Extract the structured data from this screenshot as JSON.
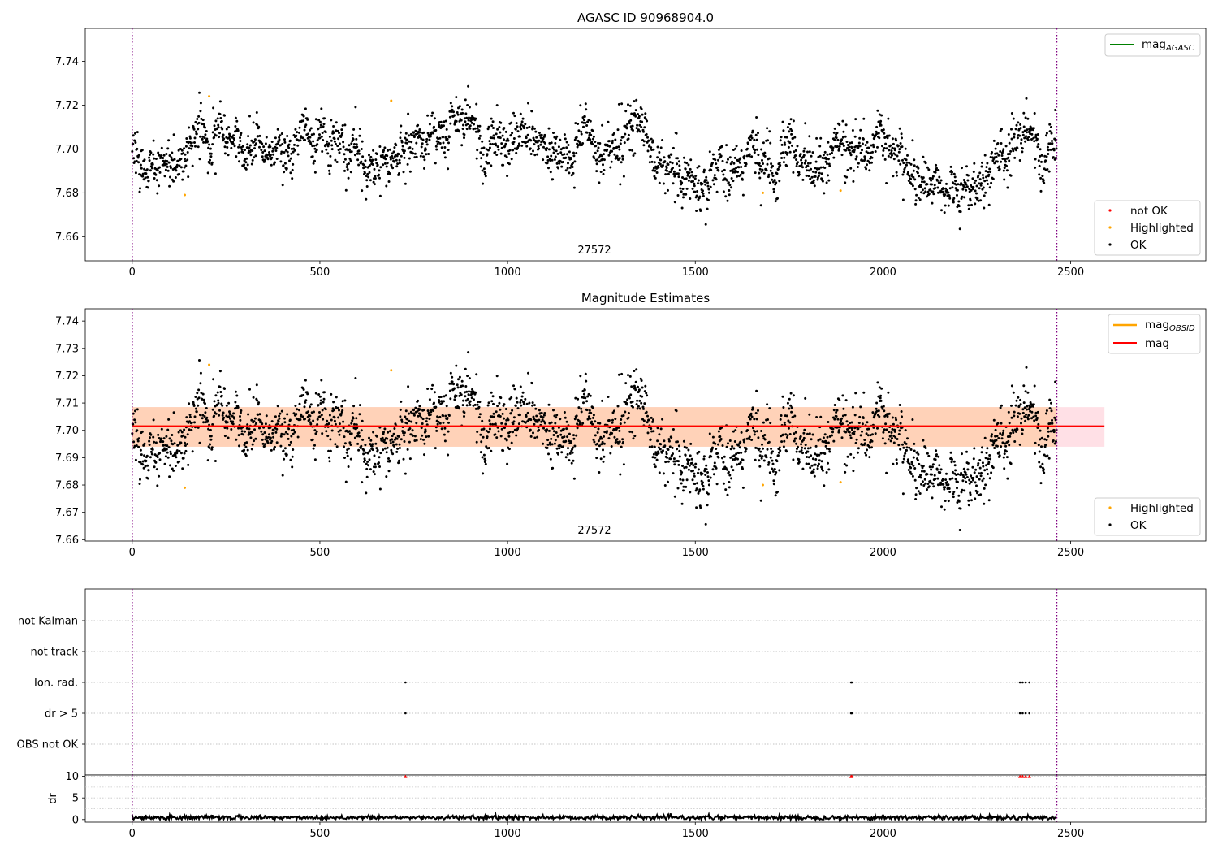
{
  "colors": {
    "ok": "#000000",
    "highlighted": "#ffa500",
    "not_ok": "#ff0000",
    "agasc_line": "#008000",
    "obsid_line": "#ffa500",
    "mag_line": "#ff0000",
    "band_orange": "#ffd2b8",
    "band_pink": "#ffe0e6",
    "boundary": "#800080"
  },
  "chart_data": [
    {
      "type": "scatter",
      "title": "AGASC ID 90968904.0",
      "xlim": [
        -125,
        2860
      ],
      "ylim": [
        7.649,
        7.755
      ],
      "xticks": [
        "0",
        "500",
        "1000",
        "1500",
        "2000",
        "2500"
      ],
      "yticks": [
        "7.66",
        "7.68",
        "7.70",
        "7.72",
        "7.74"
      ],
      "obsid_label": "27572",
      "obsid_boundaries": [
        0,
        2463
      ],
      "n_points": 2463,
      "mag_agasc": null,
      "legend_lines": [
        {
          "label": "mag",
          "sub": "AGASC",
          "color": "#008000"
        }
      ],
      "legend_points": [
        "not OK",
        "Highlighted",
        "OK"
      ],
      "highlighted_points": [
        [
          140,
          7.679
        ],
        [
          205,
          7.724
        ],
        [
          690,
          7.722
        ],
        [
          1680,
          7.68
        ],
        [
          1887,
          7.681
        ]
      ]
    },
    {
      "type": "scatter",
      "title": "Magnitude Estimates",
      "xlim": [
        -125,
        2860
      ],
      "ylim": [
        7.6595,
        7.7445
      ],
      "xticks": [
        "0",
        "500",
        "1000",
        "1500",
        "2000",
        "2500"
      ],
      "yticks": [
        "7.66",
        "7.67",
        "7.68",
        "7.69",
        "7.70",
        "7.71",
        "7.72",
        "7.73",
        "7.74"
      ],
      "obsid_label": "27572",
      "mag": 7.7015,
      "mag_band": [
        7.694,
        7.7085
      ],
      "legend_lines": [
        {
          "label": "mag",
          "sub": "OBSID",
          "color": "#ffa500"
        },
        {
          "label": "mag",
          "sub": "",
          "color": "#ff0000"
        }
      ],
      "legend_points": [
        "Highlighted",
        "OK"
      ],
      "highlighted_points": [
        [
          140,
          7.679
        ],
        [
          205,
          7.724
        ],
        [
          690,
          7.722
        ],
        [
          1680,
          7.68
        ],
        [
          1887,
          7.681
        ]
      ]
    },
    {
      "type": "scatter",
      "title": "",
      "categories": [
        "not Kalman",
        "not track",
        "Ion. rad.",
        "dr > 5",
        "OBS not OK"
      ],
      "flags": {
        "Ion. rad.": [
          728,
          1915,
          1917,
          2365,
          2372,
          2380,
          2390
        ],
        "dr > 5": [
          728,
          1915,
          1917,
          2365,
          2372,
          2380,
          2390
        ]
      },
      "xticks": [
        "0",
        "500",
        "1000",
        "1500",
        "2000",
        "2500"
      ]
    },
    {
      "type": "line",
      "ylabel": "dr",
      "ylim": [
        -0.6,
        10.3
      ],
      "yticks": [
        "0",
        "5",
        "10"
      ],
      "xticks": [
        "0",
        "500",
        "1000",
        "1500",
        "2000",
        "2500"
      ],
      "clipped_points": [
        728,
        1915,
        1917,
        2365,
        2372,
        2380,
        2390
      ],
      "clip_value": 10
    }
  ]
}
